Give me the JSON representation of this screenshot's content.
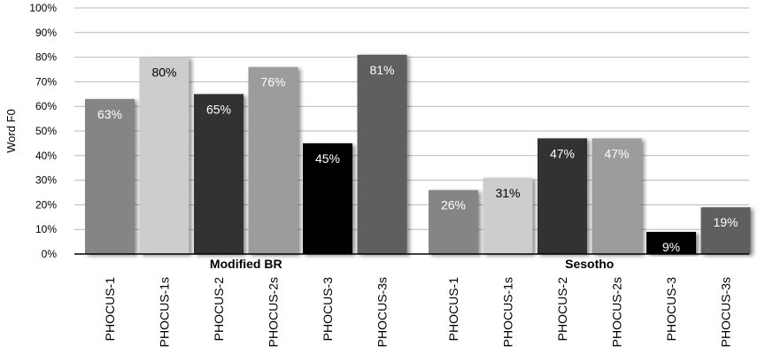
{
  "chart_data": {
    "type": "bar",
    "ylabel": "Word F0",
    "ylim": [
      0,
      100
    ],
    "yticks": [
      "0%",
      "10%",
      "20%",
      "30%",
      "40%",
      "50%",
      "60%",
      "70%",
      "80%",
      "90%",
      "100%"
    ],
    "grid": true,
    "groups": [
      {
        "name": "Modified BR",
        "categories": [
          "PHOCUS-1",
          "PHOCUS-1s",
          "PHOCUS-2",
          "PHOCUS-2s",
          "PHOCUS-3",
          "PHOCUS-3s"
        ],
        "values": [
          63,
          80,
          65,
          76,
          45,
          81
        ],
        "labels": [
          "63%",
          "80%",
          "65%",
          "76%",
          "45%",
          "81%"
        ]
      },
      {
        "name": "Sesotho",
        "categories": [
          "PHOCUS-1",
          "PHOCUS-1s",
          "PHOCUS-2",
          "PHOCUS-2s",
          "PHOCUS-3",
          "PHOCUS-3s"
        ],
        "values": [
          26,
          31,
          47,
          47,
          9,
          19
        ],
        "labels": [
          "26%",
          "31%",
          "47%",
          "47%",
          "9%",
          "19%"
        ]
      }
    ],
    "bar_colors": [
      "#858585",
      "#cdcdcd",
      "#313131",
      "#9c9c9c",
      "#050505",
      "#5e5e5e"
    ],
    "label_colors": [
      "#ffffff",
      "#000000",
      "#ffffff",
      "#ffffff",
      "#ffffff",
      "#ffffff"
    ]
  }
}
